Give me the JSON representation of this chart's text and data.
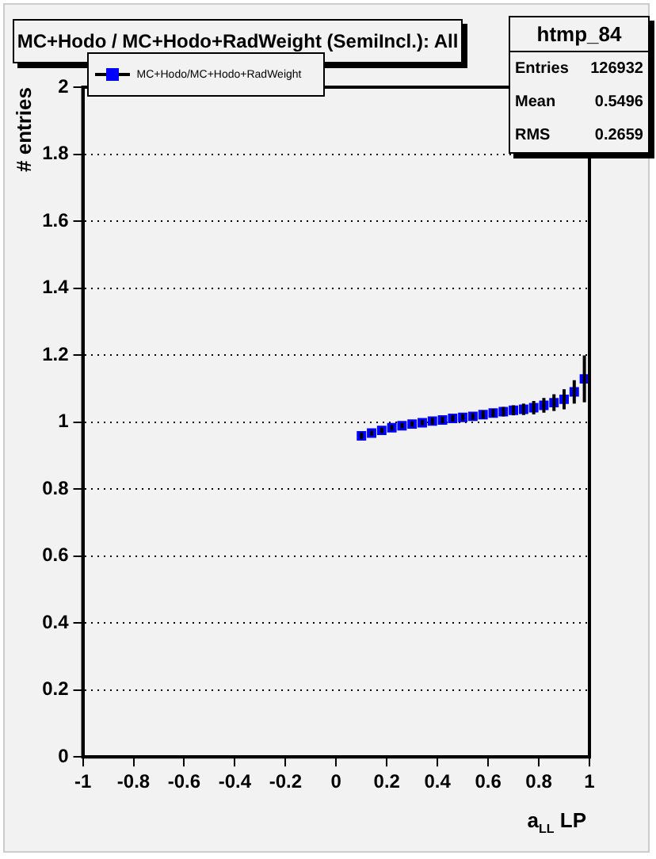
{
  "chart_data": {
    "type": "scatter",
    "title": "MC+Hodo / MC+Hodo+RadWeight (SemiIncl.): All",
    "xlabel": "a$_{LL}$ LP",
    "ylabel": "# entries",
    "annotations": [
      "htmp_84",
      "Entries",
      "126932",
      "Mean",
      "0.5496",
      "RMS",
      "0.2659"
    ],
    "x": [
      0.1,
      0.14,
      0.18,
      0.22,
      0.26,
      0.3,
      0.34,
      0.38,
      0.42,
      0.46,
      0.5,
      0.54,
      0.58,
      0.62,
      0.66,
      0.7,
      0.74,
      0.78,
      0.82,
      0.86,
      0.9,
      0.94,
      0.98
    ],
    "series": [
      {
        "name": "MC+Hodo/MC+Hodo+RadWeight",
        "color": "#0000ff",
        "values": [
          0.959,
          0.967,
          0.975,
          0.983,
          0.989,
          0.994,
          0.998,
          1.003,
          1.006,
          1.011,
          1.014,
          1.017,
          1.022,
          1.027,
          1.031,
          1.035,
          1.038,
          1.043,
          1.05,
          1.058,
          1.068,
          1.09,
          1.129
        ],
        "errors": [
          0.01,
          0.008,
          0.008,
          0.008,
          0.008,
          0.008,
          0.008,
          0.01,
          0.01,
          0.01,
          0.01,
          0.01,
          0.012,
          0.012,
          0.014,
          0.015,
          0.017,
          0.02,
          0.022,
          0.025,
          0.03,
          0.035,
          0.07
        ]
      }
    ],
    "xlim": [
      -1,
      1
    ],
    "xticks": [
      -1,
      -0.8,
      -0.6,
      -0.4,
      -0.2,
      0,
      0.2,
      0.4,
      0.6,
      0.8,
      1
    ],
    "ylim": [
      0,
      2
    ],
    "yticks": [
      0,
      0.2,
      0.4,
      0.6,
      0.8,
      1,
      1.2,
      1.4,
      1.6,
      1.8,
      2
    ],
    "grid": "y",
    "legend": "top left",
    "marker": "square"
  }
}
